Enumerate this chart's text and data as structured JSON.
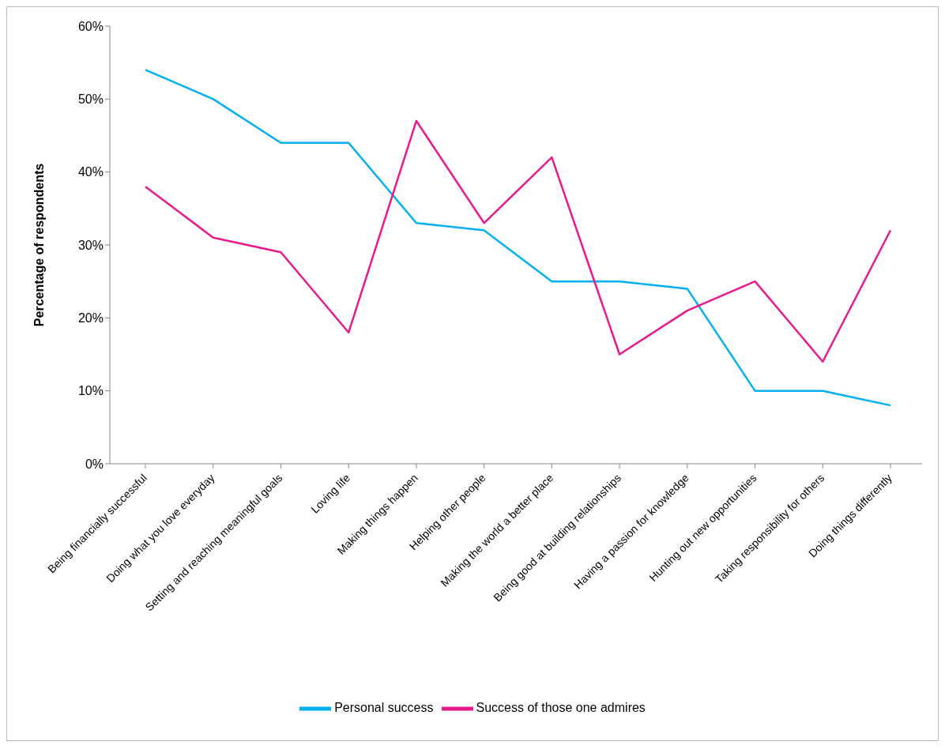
{
  "chart_data": {
    "type": "line",
    "ylabel": "Percentage of respondents",
    "categories": [
      "Being financially successful",
      "Doing what you love everyday",
      "Setting and reaching meaningful goals",
      "Loving life",
      "Making things happen",
      "Helping other people",
      "Making the world a better place",
      "Being good at building relationships",
      "Having a passion for knowledge",
      "Hunting out new opportunities",
      "Taking responsibility for others",
      "Doing things differently"
    ],
    "series": [
      {
        "name": "Personal success",
        "color": "#00b0f0",
        "values": [
          54,
          50,
          44,
          44,
          33,
          32,
          25,
          25,
          24,
          10,
          10,
          8
        ]
      },
      {
        "name": "Success of those one admires",
        "color": "#e8198b",
        "values": [
          38,
          31,
          29,
          18,
          47,
          33,
          42,
          15,
          21,
          25,
          14,
          32
        ]
      }
    ],
    "ylim": [
      0,
      60
    ],
    "yticks": [
      {
        "value": 0,
        "label": "0%"
      },
      {
        "value": 10,
        "label": "10%"
      },
      {
        "value": 20,
        "label": "20%"
      },
      {
        "value": 30,
        "label": "30%"
      },
      {
        "value": 40,
        "label": "40%"
      },
      {
        "value": 50,
        "label": "50%"
      },
      {
        "value": 60,
        "label": "60%"
      }
    ],
    "grid": false,
    "legend": "bottom",
    "marker": "none",
    "line_style": "solid"
  }
}
